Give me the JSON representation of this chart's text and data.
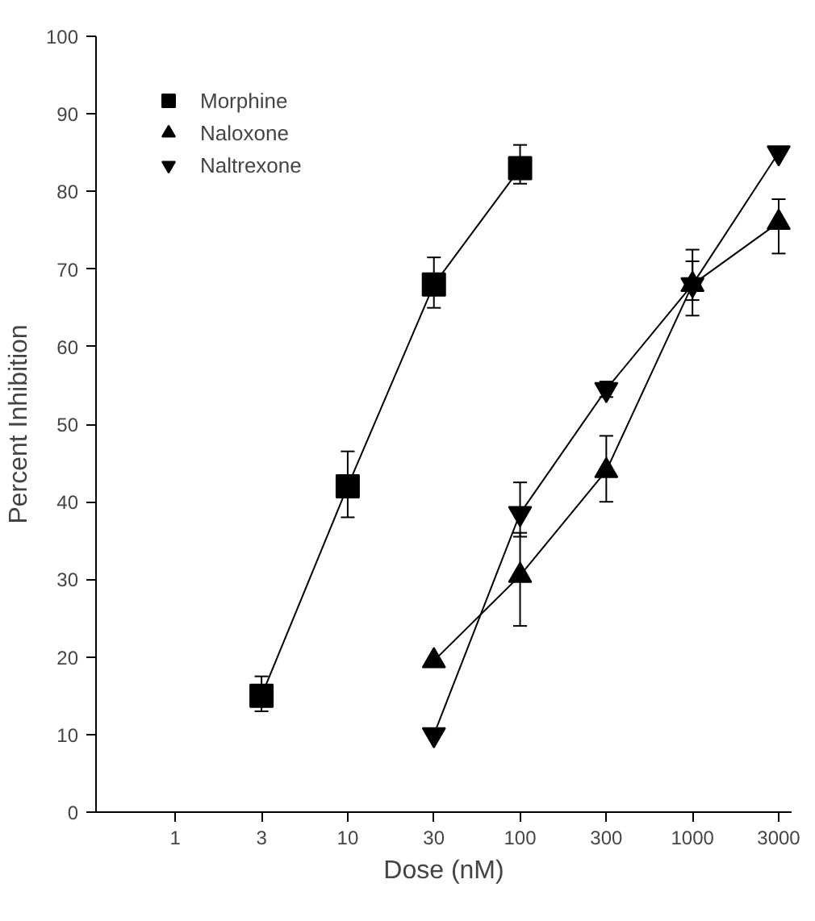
{
  "chart_data": {
    "type": "line",
    "xlabel": "Dose (nM)",
    "ylabel": "Percent Inhibition",
    "categories": [
      "1",
      "3",
      "10",
      "30",
      "100",
      "300",
      "1000",
      "3000"
    ],
    "ylim": [
      0,
      100
    ],
    "yticks": [
      0,
      10,
      20,
      30,
      40,
      50,
      60,
      70,
      80,
      90,
      100
    ],
    "grid": false,
    "legend": "top left",
    "series": [
      {
        "name": "Morphine",
        "color": "#000000",
        "marker": "square",
        "values": [
          null,
          15,
          42,
          68,
          83,
          null,
          null,
          null
        ],
        "errors": [
          null,
          [
            13,
            17.5
          ],
          [
            38,
            46.5
          ],
          [
            65,
            71.5
          ],
          [
            81,
            86
          ],
          null,
          null,
          null
        ]
      },
      {
        "name": "Naloxone",
        "color": "#000000",
        "marker": "triangle",
        "values": [
          null,
          null,
          null,
          19.5,
          30.5,
          44,
          68,
          76
        ],
        "errors": [
          null,
          null,
          null,
          null,
          [
            24,
            36
          ],
          [
            40,
            48.5
          ],
          [
            64,
            71
          ],
          [
            72,
            79
          ]
        ]
      },
      {
        "name": "Naltrexone",
        "color": "#000000",
        "marker": "triangle",
        "values": [
          null,
          null,
          null,
          10,
          38.5,
          54.5,
          68,
          85
        ],
        "errors": [
          null,
          null,
          null,
          null,
          [
            35.5,
            42.5
          ],
          [
            53.5,
            55.5
          ],
          [
            66,
            72.5
          ],
          null
        ]
      }
    ]
  }
}
